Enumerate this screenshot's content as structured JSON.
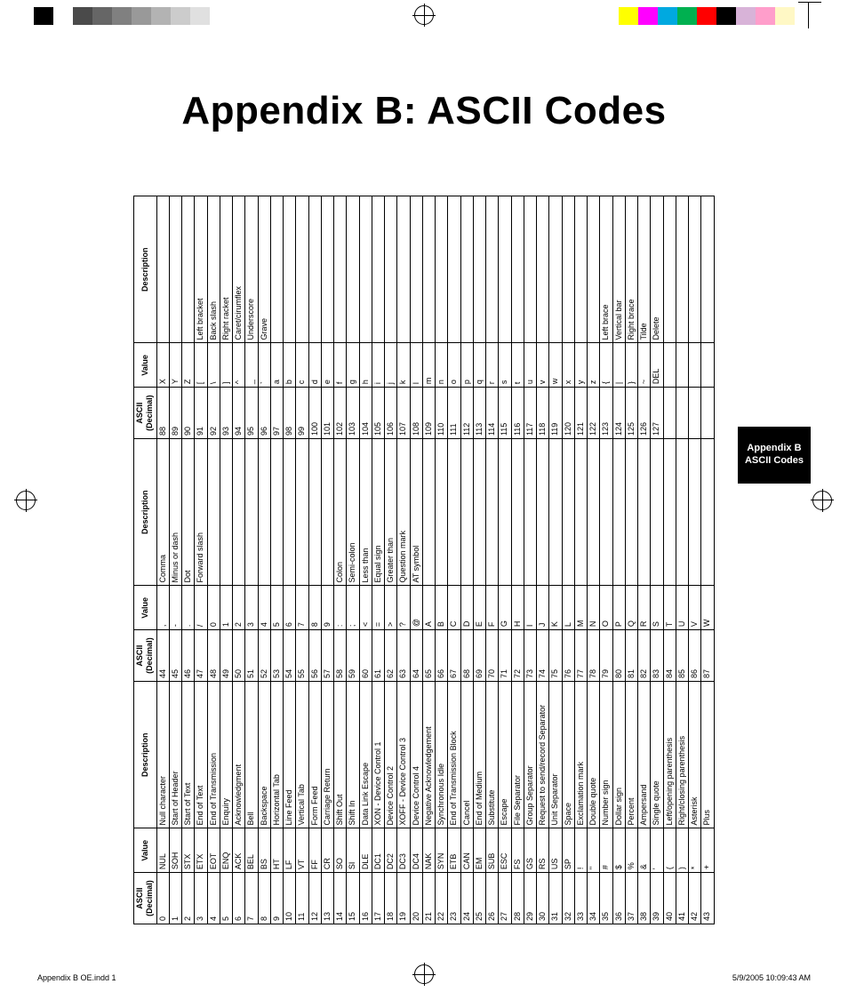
{
  "title": "Appendix B:     ASCII Codes",
  "sidetab_line1": "Appendix B",
  "sidetab_line2": "ASCII Codes",
  "footer_left": "Appendix B OE.indd   1",
  "footer_right": "5/9/2005   10:09:43 AM",
  "hdr_ascii1": "ASCII",
  "hdr_ascii2": "(Decimal)",
  "hdr_value": "Value",
  "hdr_desc": "Description",
  "colorbars": {
    "left": [
      "#000000",
      "#ffffff",
      "#4a4a4a",
      "#666666",
      "#808080",
      "#999999",
      "#b3b3b3",
      "#cccccc",
      "#e0e0e0"
    ],
    "right": [
      "#ffff00",
      "#ff00ff",
      "#00a9e0",
      "#00b050",
      "#ff0000",
      "#000000",
      "#d8b3d8",
      "#ff9ecb",
      "#fff8c5"
    ]
  },
  "rows": [
    [
      "0",
      "NUL",
      "Null character",
      "44",
      ",",
      "Comma",
      "88",
      "X",
      ""
    ],
    [
      "1",
      "SOH",
      "Start of Header",
      "45",
      "-",
      "Minus or dash",
      "89",
      "Y",
      ""
    ],
    [
      "2",
      "STX",
      "Start of Text",
      "46",
      ".",
      "Dot",
      "90",
      "Z",
      ""
    ],
    [
      "3",
      "ETX",
      "End of Text",
      "47",
      "/",
      "Forward slash",
      "91",
      "[",
      "Left bracket"
    ],
    [
      "4",
      "EOT",
      "End of Transmission",
      "48",
      "0",
      "",
      "92",
      "\\",
      "Back slash"
    ],
    [
      "5",
      "ENQ",
      "Enquiry",
      "49",
      "1",
      "",
      "93",
      "]",
      "Right racket"
    ],
    [
      "6",
      "ACK",
      "Acknowledgment",
      "50",
      "2",
      "",
      "94",
      "^",
      "Caret/cirumflex"
    ],
    [
      "7",
      "BEL",
      "Bell",
      "51",
      "3",
      "",
      "95",
      "_",
      "Underscore"
    ],
    [
      "8",
      "BS",
      "Backspace",
      "52",
      "4",
      "",
      "96",
      "`",
      "Grave"
    ],
    [
      "9",
      "HT",
      "Horizontal Tab",
      "53",
      "5",
      "",
      "97",
      "a",
      ""
    ],
    [
      "10",
      "LF",
      "Line Feed",
      "54",
      "6",
      "",
      "98",
      "b",
      ""
    ],
    [
      "11",
      "VT",
      "Vertical Tab",
      "55",
      "7",
      "",
      "99",
      "c",
      ""
    ],
    [
      "12",
      "FF",
      "Form Feed",
      "56",
      "8",
      "",
      "100",
      "d",
      ""
    ],
    [
      "13",
      "CR",
      "Carriage Return",
      "57",
      "9",
      "",
      "101",
      "e",
      ""
    ],
    [
      "14",
      "SO",
      "Shift Out",
      "58",
      ":",
      "Colon",
      "102",
      "f",
      ""
    ],
    [
      "15",
      "SI",
      "Shift In",
      "59",
      ";",
      "Semi-colon",
      "103",
      "g",
      ""
    ],
    [
      "16",
      "DLE",
      "Data Link Escape",
      "60",
      "<",
      "Less than",
      "104",
      "h",
      ""
    ],
    [
      "17",
      "DC1",
      "XON - Device Control 1",
      "61",
      "=",
      "Equal sign",
      "105",
      "i",
      ""
    ],
    [
      "18",
      "DC2",
      "Device Control 2",
      "62",
      ">",
      "Greater than",
      "106",
      "j",
      ""
    ],
    [
      "19",
      "DC3",
      "XOFF - Device Control 3",
      "63",
      "?",
      "Question mark",
      "107",
      "k",
      ""
    ],
    [
      "20",
      "DC4",
      "Device Control 4",
      "64",
      "@",
      "AT symbol",
      "108",
      "l",
      ""
    ],
    [
      "21",
      "NAK",
      "Negative Acknowledgement",
      "65",
      "A",
      "",
      "109",
      "m",
      ""
    ],
    [
      "22",
      "SYN",
      "Synchronous Idle",
      "66",
      "B",
      "",
      "110",
      "n",
      ""
    ],
    [
      "23",
      "ETB",
      "End of Transmission Block",
      "67",
      "C",
      "",
      "111",
      "o",
      ""
    ],
    [
      "24",
      "CAN",
      "Cancel",
      "68",
      "D",
      "",
      "112",
      "p",
      ""
    ],
    [
      "25",
      "EM",
      "End of Medium",
      "69",
      "E",
      "",
      "113",
      "q",
      ""
    ],
    [
      "26",
      "SUB",
      "Substitute",
      "70",
      "F",
      "",
      "114",
      "r",
      ""
    ],
    [
      "27",
      "ESC",
      "Escape",
      "71",
      "G",
      "",
      "115",
      "s",
      ""
    ],
    [
      "28",
      "FS",
      "File Separator",
      "72",
      "H",
      "",
      "116",
      "t",
      ""
    ],
    [
      "29",
      "GS",
      "Group Separator",
      "73",
      "I",
      "",
      "117",
      "u",
      ""
    ],
    [
      "30",
      "RS",
      "Request to send/record Separator",
      "74",
      "J",
      "",
      "118",
      "v",
      ""
    ],
    [
      "31",
      "US",
      "Unit Separator",
      "75",
      "K",
      "",
      "119",
      "w",
      ""
    ],
    [
      "32",
      "SP",
      "Space",
      "76",
      "L",
      "",
      "120",
      "x",
      ""
    ],
    [
      "33",
      "!",
      "Exclamation mark",
      "77",
      "M",
      "",
      "121",
      "y",
      ""
    ],
    [
      "34",
      "\"",
      "Double quote",
      "78",
      "N",
      "",
      "122",
      "z",
      ""
    ],
    [
      "35",
      "#",
      "Number sign",
      "79",
      "O",
      "",
      "123",
      "{",
      "Left brace"
    ],
    [
      "36",
      "$",
      "Dollar sign",
      "80",
      "P",
      "",
      "124",
      "|",
      "Vertical bar"
    ],
    [
      "37",
      "%",
      "Percent",
      "81",
      "Q",
      "",
      "125",
      "}",
      "Right brace"
    ],
    [
      "38",
      "&",
      "Ampersand",
      "82",
      "R",
      "",
      "126",
      "~",
      "Tilde"
    ],
    [
      "39",
      "'",
      "Single quote",
      "83",
      "S",
      "",
      "127",
      "DEL",
      "Delete"
    ],
    [
      "40",
      "(",
      "Left/opening parenthesis",
      "84",
      "T",
      "",
      "",
      "",
      ""
    ],
    [
      "41",
      ")",
      "Right/closing parenthesis",
      "85",
      "U",
      "",
      "",
      "",
      ""
    ],
    [
      "42",
      "*",
      "Asterisk",
      "86",
      "V",
      "",
      "",
      "",
      ""
    ],
    [
      "43",
      "+",
      "Plus",
      "87",
      "W",
      "",
      "",
      "",
      ""
    ]
  ]
}
